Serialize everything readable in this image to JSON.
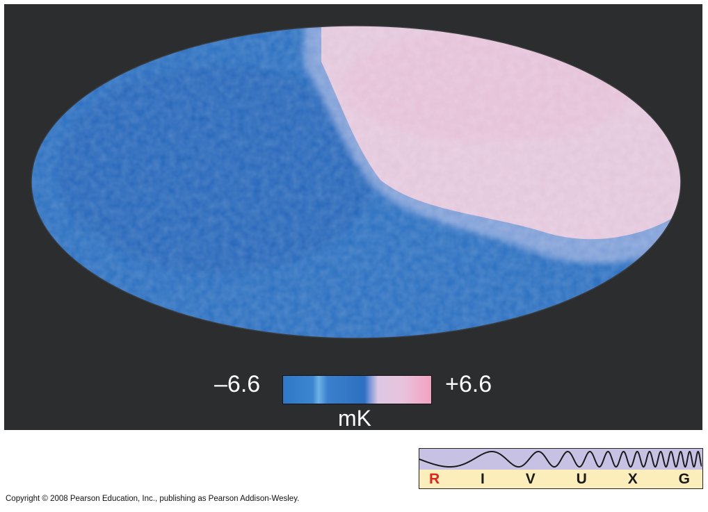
{
  "colorbar": {
    "min_label": "–6.6",
    "max_label": "+6.6",
    "unit_label": "mK",
    "cold_color": "#2a6fc0",
    "hot_color": "#f2a6c4"
  },
  "spectrum_indicator": {
    "bands": [
      "R",
      "I",
      "V",
      "U",
      "X",
      "G"
    ],
    "active_band": "R",
    "active_color": "#e2231a"
  },
  "copyright": "Copyright © 2008 Pearson Education, Inc., publishing as Pearson Addison-Wesley."
}
